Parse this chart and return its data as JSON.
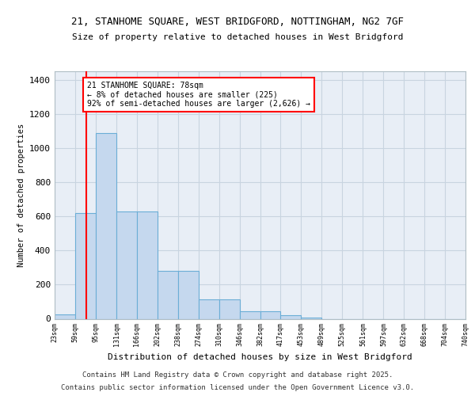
{
  "title1": "21, STANHOME SQUARE, WEST BRIDGFORD, NOTTINGHAM, NG2 7GF",
  "title2": "Size of property relative to detached houses in West Bridgford",
  "xlabel": "Distribution of detached houses by size in West Bridgford",
  "ylabel": "Number of detached properties",
  "bin_edges": [
    23,
    59,
    95,
    131,
    166,
    202,
    238,
    274,
    310,
    346,
    382,
    417,
    453,
    489,
    525,
    561,
    597,
    632,
    668,
    704,
    740
  ],
  "bar_heights": [
    25,
    620,
    1090,
    630,
    630,
    280,
    280,
    115,
    115,
    45,
    45,
    20,
    5,
    0,
    0,
    0,
    0,
    0,
    0,
    0
  ],
  "bar_color": "#c5d8ee",
  "bar_edge_color": "#6baed6",
  "bg_color": "#e8eef6",
  "grid_color": "#c8d4e0",
  "fig_bg_color": "#ffffff",
  "red_line_x": 78,
  "annotation_title": "21 STANHOME SQUARE: 78sqm",
  "annotation_line1": "← 8% of detached houses are smaller (225)",
  "annotation_line2": "92% of semi-detached houses are larger (2,626) →",
  "ylim": [
    0,
    1450
  ],
  "yticks": [
    0,
    200,
    400,
    600,
    800,
    1000,
    1200,
    1400
  ],
  "footer1": "Contains HM Land Registry data © Crown copyright and database right 2025.",
  "footer2": "Contains public sector information licensed under the Open Government Licence v3.0."
}
